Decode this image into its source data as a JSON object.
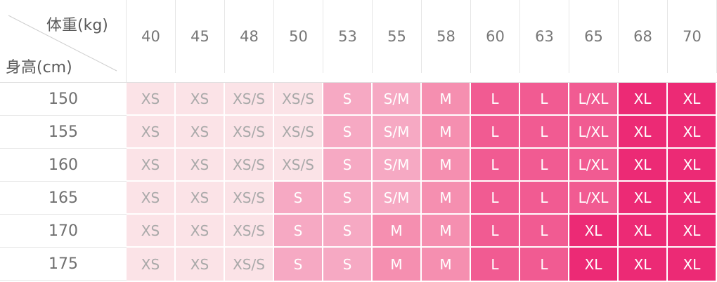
{
  "table": {
    "corner": {
      "weight_label": "体重(kg)",
      "height_label": "身高(cm)"
    },
    "weights": [
      "40",
      "45",
      "48",
      "50",
      "53",
      "55",
      "58",
      "60",
      "63",
      "65",
      "68",
      "70"
    ],
    "rows": [
      {
        "height": "150",
        "sizes": [
          "XS",
          "XS",
          "XS/S",
          "XS/S",
          "S",
          "S/M",
          "M",
          "L",
          "L",
          "L/XL",
          "XL",
          "XL"
        ]
      },
      {
        "height": "155",
        "sizes": [
          "XS",
          "XS",
          "XS/S",
          "XS/S",
          "S",
          "S/M",
          "M",
          "L",
          "L",
          "L/XL",
          "XL",
          "XL"
        ]
      },
      {
        "height": "160",
        "sizes": [
          "XS",
          "XS",
          "XS/S",
          "XS/S",
          "S",
          "S/M",
          "M",
          "L",
          "L",
          "L/XL",
          "XL",
          "XL"
        ]
      },
      {
        "height": "165",
        "sizes": [
          "XS",
          "XS",
          "XS/S",
          "S",
          "S",
          "S/M",
          "M",
          "L",
          "L",
          "L/XL",
          "XL",
          "XL"
        ]
      },
      {
        "height": "170",
        "sizes": [
          "XS",
          "XS",
          "XS/S",
          "S",
          "S",
          "M",
          "M",
          "L",
          "L",
          "XL",
          "XL",
          "XL"
        ]
      },
      {
        "height": "175",
        "sizes": [
          "XS",
          "XS",
          "XS/S",
          "S",
          "S",
          "M",
          "M",
          "L",
          "L",
          "XL",
          "XL",
          "XL"
        ]
      }
    ]
  },
  "colors": {
    "XS": {
      "bg": "#fbe3e7",
      "fg": "#a9a9a9"
    },
    "XS/S": {
      "bg": "#fbe3e7",
      "fg": "#a9a9a9"
    },
    "S": {
      "bg": "#f6a9c3",
      "fg": "#ffffff"
    },
    "S/M": {
      "bg": "#f6a9c3",
      "fg": "#ffffff"
    },
    "M": {
      "bg": "#f58fb0",
      "fg": "#ffffff"
    },
    "L": {
      "bg": "#f15b92",
      "fg": "#ffffff"
    },
    "L/XL": {
      "bg": "#f15b92",
      "fg": "#ffffff"
    },
    "XL": {
      "bg": "#ec2a75",
      "fg": "#ffffff"
    }
  }
}
